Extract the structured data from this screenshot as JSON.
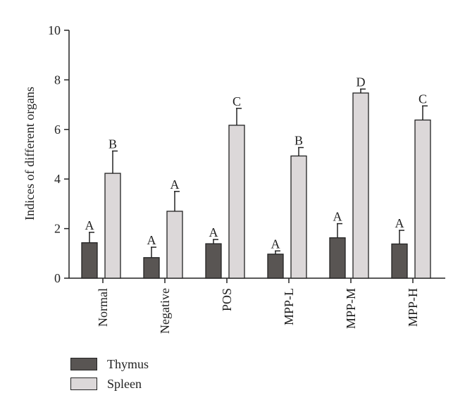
{
  "chart_data": {
    "type": "bar",
    "ylabel": "Indices of different organs",
    "xlabel": "",
    "ylim": [
      0,
      10
    ],
    "yticks": [
      0,
      2,
      4,
      6,
      8,
      10
    ],
    "categories": [
      "Normal",
      "Negative",
      "POS",
      "MPP-L",
      "MPP-M",
      "MPP-H"
    ],
    "series": [
      {
        "name": "Thymus",
        "color": "#595553",
        "values": [
          1.43,
          0.83,
          1.39,
          0.97,
          1.63,
          1.38
        ],
        "errors": [
          0.42,
          0.42,
          0.17,
          0.13,
          0.57,
          0.55
        ],
        "letters": [
          "A",
          "A",
          "A",
          "A",
          "A",
          "A"
        ]
      },
      {
        "name": "Spleen",
        "color": "#dcd8d9",
        "values": [
          4.23,
          2.7,
          6.17,
          4.93,
          7.47,
          6.38
        ],
        "errors": [
          0.9,
          0.8,
          0.68,
          0.34,
          0.16,
          0.57
        ],
        "letters": [
          "B",
          "A",
          "C",
          "B",
          "D",
          "C"
        ]
      }
    ],
    "grid": false,
    "legend_position": "bottom-left"
  }
}
